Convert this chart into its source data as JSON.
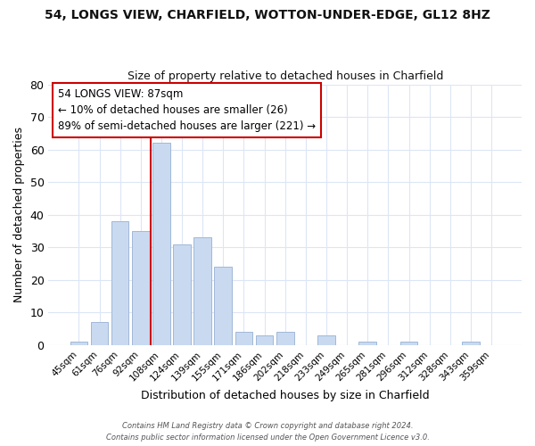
{
  "title_line1": "54, LONGS VIEW, CHARFIELD, WOTTON-UNDER-EDGE, GL12 8HZ",
  "title_line2": "Size of property relative to detached houses in Charfield",
  "xlabel": "Distribution of detached houses by size in Charfield",
  "ylabel": "Number of detached properties",
  "bar_labels": [
    "45sqm",
    "61sqm",
    "76sqm",
    "92sqm",
    "108sqm",
    "124sqm",
    "139sqm",
    "155sqm",
    "171sqm",
    "186sqm",
    "202sqm",
    "218sqm",
    "233sqm",
    "249sqm",
    "265sqm",
    "281sqm",
    "296sqm",
    "312sqm",
    "328sqm",
    "343sqm",
    "359sqm"
  ],
  "bar_values": [
    1,
    7,
    38,
    35,
    62,
    31,
    33,
    24,
    4,
    3,
    4,
    0,
    3,
    0,
    1,
    0,
    1,
    0,
    0,
    1,
    0
  ],
  "bar_color": "#c9daf0",
  "bar_edge_color": "#a0b8d8",
  "vline_color": "#cc0000",
  "ylim": [
    0,
    80
  ],
  "yticks": [
    0,
    10,
    20,
    30,
    40,
    50,
    60,
    70,
    80
  ],
  "annotation_line1": "54 LONGS VIEW: 87sqm",
  "annotation_line2": "← 10% of detached houses are smaller (26)",
  "annotation_line3": "89% of semi-detached houses are larger (221) →",
  "annotation_box_color": "#ffffff",
  "annotation_box_edgecolor": "#cc0000",
  "footer_line1": "Contains HM Land Registry data © Crown copyright and database right 2024.",
  "footer_line2": "Contains public sector information licensed under the Open Government Licence v3.0.",
  "background_color": "#ffffff",
  "grid_color": "#dce6f5"
}
